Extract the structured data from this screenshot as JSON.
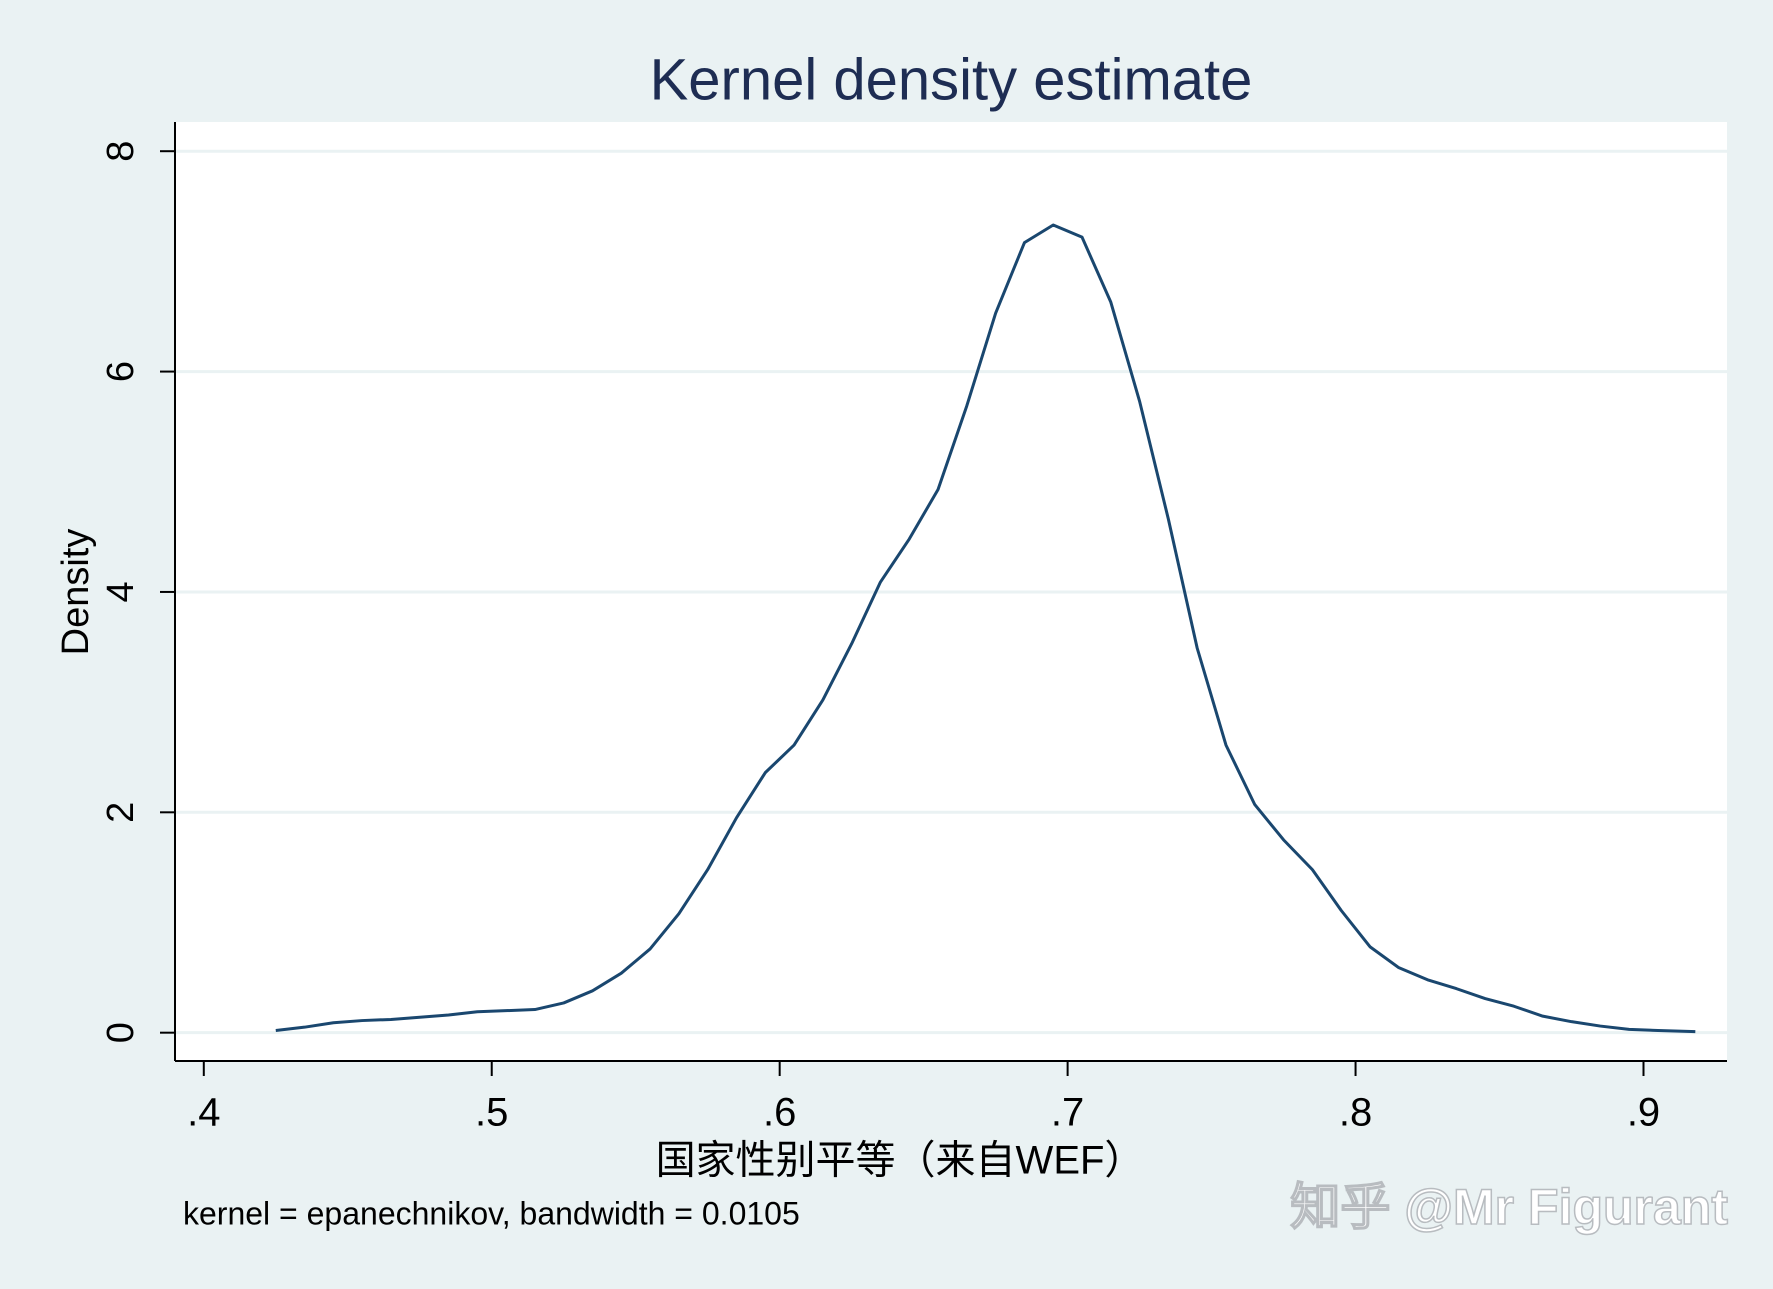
{
  "chart_data": {
    "type": "line",
    "title": "Kernel density estimate",
    "x_label": "国家性别平等（来自WEF）",
    "y_label": "Density",
    "note": "kernel = epanechnikov, bandwidth = 0.0105",
    "watermark": "知乎 @Mr Figurant",
    "x": [
      0.425,
      0.435,
      0.445,
      0.455,
      0.465,
      0.475,
      0.485,
      0.495,
      0.505,
      0.515,
      0.525,
      0.535,
      0.545,
      0.555,
      0.565,
      0.575,
      0.585,
      0.595,
      0.605,
      0.615,
      0.625,
      0.635,
      0.645,
      0.655,
      0.665,
      0.675,
      0.685,
      0.695,
      0.705,
      0.715,
      0.725,
      0.735,
      0.745,
      0.755,
      0.765,
      0.775,
      0.785,
      0.795,
      0.805,
      0.815,
      0.825,
      0.835,
      0.845,
      0.855,
      0.865,
      0.875,
      0.885,
      0.895,
      0.905,
      0.918
    ],
    "series": [
      {
        "name": "Density",
        "color": "#1a476f",
        "values": [
          0.02,
          0.05,
          0.09,
          0.11,
          0.12,
          0.14,
          0.16,
          0.19,
          0.2,
          0.21,
          0.27,
          0.38,
          0.54,
          0.76,
          1.08,
          1.48,
          1.95,
          2.36,
          2.61,
          3.02,
          3.53,
          4.09,
          4.48,
          4.93,
          5.69,
          6.53,
          7.17,
          7.33,
          7.22,
          6.63,
          5.73,
          4.66,
          3.49,
          2.61,
          2.07,
          1.75,
          1.48,
          1.11,
          0.78,
          0.59,
          0.48,
          0.4,
          0.31,
          0.24,
          0.15,
          0.1,
          0.06,
          0.03,
          0.02,
          0.01
        ]
      }
    ],
    "xlim": [
      0.39,
      0.929
    ],
    "ylim": [
      -0.257,
      8.265
    ],
    "xticks": [
      {
        "value": 0.4,
        "label": ".4"
      },
      {
        "value": 0.5,
        "label": ".5"
      },
      {
        "value": 0.6,
        "label": ".6"
      },
      {
        "value": 0.7,
        "label": ".7"
      },
      {
        "value": 0.8,
        "label": ".8"
      },
      {
        "value": 0.9,
        "label": ".9"
      }
    ],
    "yticks": [
      0,
      2,
      4,
      6,
      8
    ],
    "grid": true
  }
}
